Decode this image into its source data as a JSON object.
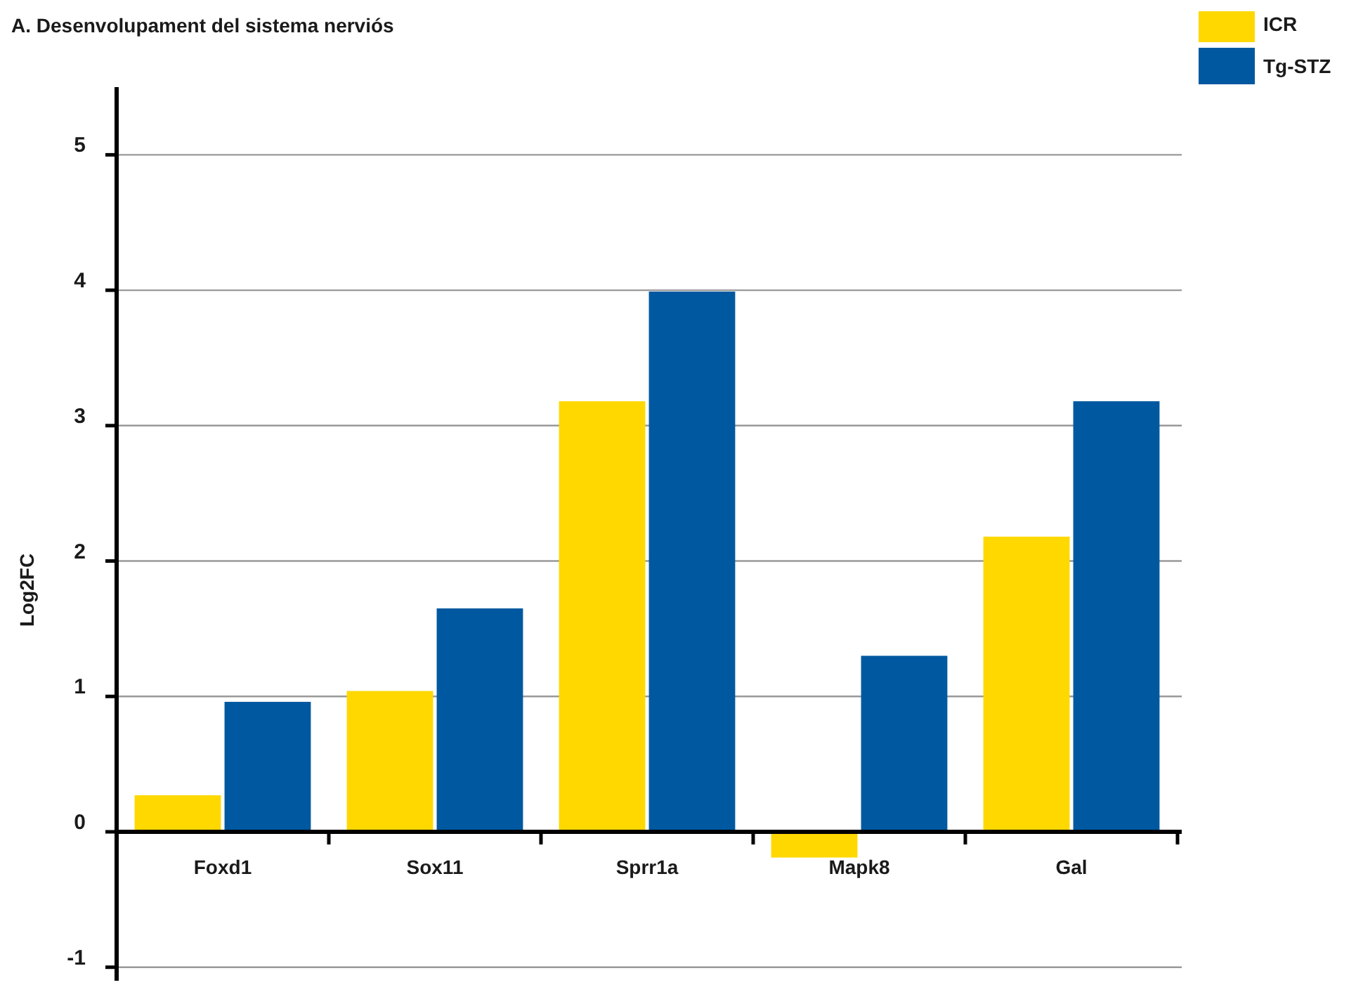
{
  "chart_data": {
    "type": "bar",
    "title": "A. Desenvolupament del sistema nerviós",
    "ylabel": "Log2FC",
    "categories": [
      "Foxd1",
      "Sox11",
      "Sprr1a",
      "Mapk8",
      "Gal"
    ],
    "series": [
      {
        "name": "ICR",
        "color": "#ffd800",
        "values": [
          0.27,
          1.04,
          3.18,
          -0.19,
          2.18
        ]
      },
      {
        "name": "Tg-STZ",
        "color": "#0059a0",
        "values": [
          0.96,
          1.65,
          3.99,
          1.3,
          3.18
        ]
      }
    ],
    "ylim": [
      -1.1,
      5.5
    ],
    "yticks": [
      -1,
      0,
      1,
      2,
      3,
      4,
      5
    ],
    "grid": "y",
    "legend": "top right"
  }
}
